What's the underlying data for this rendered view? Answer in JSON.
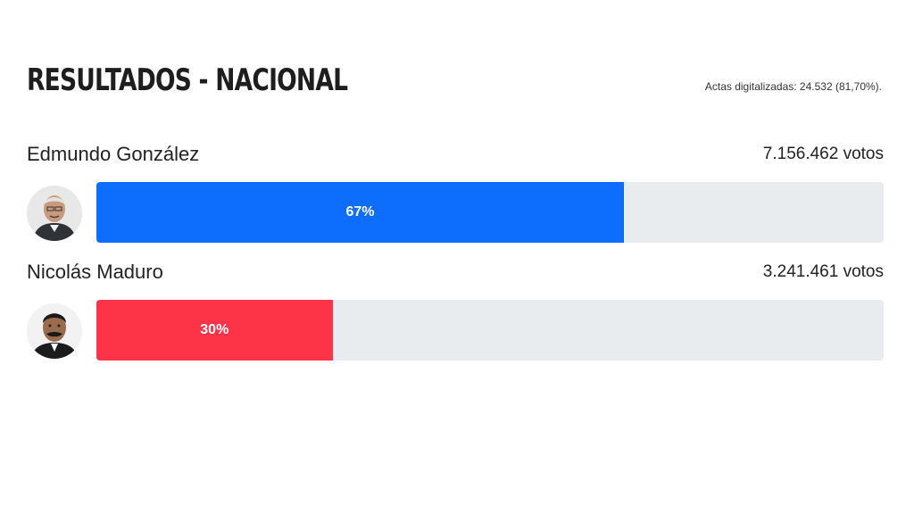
{
  "header": {
    "title": "RESULTADOS - NACIONAL",
    "meta": "Actas digitalizadas: 24.532 (81,70%)."
  },
  "candidates": [
    {
      "name": "Edmundo González",
      "votes": "7.156.462 votos",
      "percent_label": "67%",
      "percent": 67,
      "color": "#0d6efd"
    },
    {
      "name": "Nicolás Maduro",
      "votes": "3.241.461 votos",
      "percent_label": "30%",
      "percent": 30,
      "color": "#fd3347"
    }
  ]
}
